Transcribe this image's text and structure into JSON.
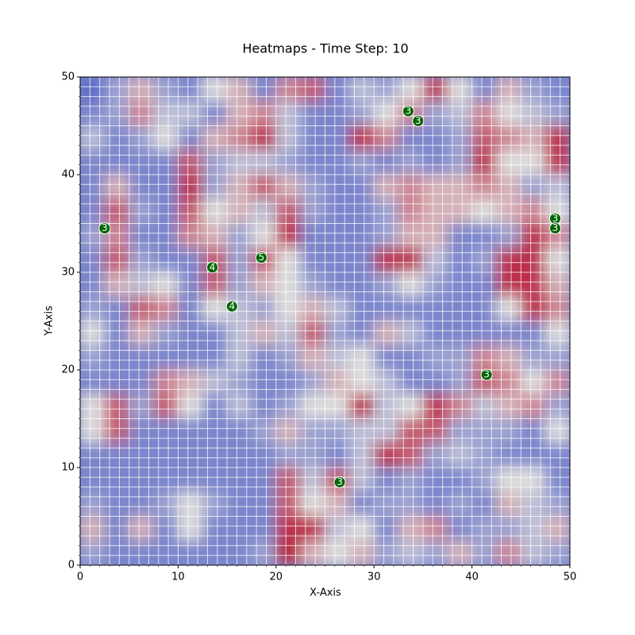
{
  "chart_data": {
    "type": "heatmap",
    "title": "Heatmaps - Time Step: 10",
    "x_label": "X-Axis",
    "y_label": "Y-Axis",
    "xlim": [
      0,
      50
    ],
    "ylim": [
      0,
      50
    ],
    "xticks": [
      0,
      10,
      20,
      30,
      40,
      50
    ],
    "yticks": [
      0,
      10,
      20,
      30,
      40,
      50
    ],
    "minor_tick_step": 1,
    "grid": true,
    "colormap": "coolwarm",
    "z": [
      [
        0.1,
        0.3,
        0.6,
        0.3,
        0.2,
        0.5,
        0.6,
        0.2,
        0.7,
        0.8,
        0.2,
        0.4,
        0.3,
        0.5,
        0.9,
        0.5,
        0.2,
        0.6,
        0.3,
        0.2
      ],
      [
        0.2,
        0.3,
        0.7,
        0.4,
        0.4,
        0.2,
        0.6,
        0.7,
        0.4,
        0.2,
        0.2,
        0.3,
        0.5,
        0.7,
        0.3,
        0.4,
        0.7,
        0.5,
        0.4,
        0.3
      ],
      [
        0.4,
        0.2,
        0.3,
        0.5,
        0.2,
        0.6,
        0.7,
        0.9,
        0.4,
        0.2,
        0.2,
        0.9,
        0.7,
        0.2,
        0.2,
        0.3,
        0.8,
        0.7,
        0.6,
        0.9
      ],
      [
        0.2,
        0.2,
        0.2,
        0.2,
        0.8,
        0.3,
        0.4,
        0.4,
        0.3,
        0.2,
        0.2,
        0.3,
        0.2,
        0.3,
        0.2,
        0.3,
        0.9,
        0.5,
        0.5,
        0.9
      ],
      [
        0.2,
        0.6,
        0.2,
        0.2,
        0.9,
        0.3,
        0.6,
        0.8,
        0.6,
        0.3,
        0.2,
        0.2,
        0.6,
        0.7,
        0.6,
        0.6,
        0.7,
        0.6,
        0.3,
        0.4
      ],
      [
        0.2,
        0.8,
        0.3,
        0.2,
        0.8,
        0.5,
        0.6,
        0.4,
        0.8,
        0.3,
        0.2,
        0.2,
        0.3,
        0.7,
        0.6,
        0.6,
        0.5,
        0.6,
        0.7,
        0.5
      ],
      [
        0.3,
        0.7,
        0.2,
        0.2,
        0.7,
        0.6,
        0.3,
        0.5,
        0.9,
        0.2,
        0.2,
        0.2,
        0.3,
        0.6,
        0.6,
        0.2,
        0.2,
        0.3,
        0.9,
        0.7
      ],
      [
        0.2,
        0.8,
        0.3,
        0.2,
        0.2,
        0.8,
        0.3,
        0.8,
        0.5,
        0.2,
        0.2,
        0.2,
        0.9,
        0.9,
        0.4,
        0.2,
        0.3,
        0.9,
        0.9,
        0.5
      ],
      [
        0.2,
        0.6,
        0.4,
        0.5,
        0.2,
        0.8,
        0.3,
        0.6,
        0.5,
        0.3,
        0.2,
        0.2,
        0.3,
        0.5,
        0.3,
        0.2,
        0.2,
        0.9,
        0.9,
        0.6
      ],
      [
        0.3,
        0.2,
        0.8,
        0.7,
        0.2,
        0.5,
        0.4,
        0.3,
        0.5,
        0.6,
        0.4,
        0.2,
        0.2,
        0.2,
        0.2,
        0.2,
        0.2,
        0.5,
        0.9,
        0.7
      ],
      [
        0.5,
        0.2,
        0.6,
        0.3,
        0.2,
        0.2,
        0.4,
        0.6,
        0.4,
        0.8,
        0.3,
        0.2,
        0.6,
        0.4,
        0.2,
        0.2,
        0.2,
        0.2,
        0.2,
        0.5
      ],
      [
        0.3,
        0.2,
        0.2,
        0.2,
        0.2,
        0.2,
        0.4,
        0.2,
        0.3,
        0.6,
        0.4,
        0.5,
        0.2,
        0.2,
        0.3,
        0.3,
        0.7,
        0.6,
        0.3,
        0.3
      ],
      [
        0.2,
        0.2,
        0.2,
        0.7,
        0.6,
        0.4,
        0.3,
        0.2,
        0.2,
        0.3,
        0.6,
        0.5,
        0.4,
        0.2,
        0.2,
        0.3,
        0.8,
        0.7,
        0.5,
        0.7
      ],
      [
        0.5,
        0.8,
        0.3,
        0.8,
        0.5,
        0.2,
        0.4,
        0.2,
        0.3,
        0.5,
        0.5,
        0.9,
        0.4,
        0.5,
        0.9,
        0.7,
        0.4,
        0.6,
        0.7,
        0.3
      ],
      [
        0.5,
        0.8,
        0.2,
        0.2,
        0.2,
        0.2,
        0.2,
        0.3,
        0.6,
        0.3,
        0.3,
        0.4,
        0.4,
        0.8,
        0.8,
        0.3,
        0.3,
        0.3,
        0.2,
        0.5
      ],
      [
        0.2,
        0.2,
        0.2,
        0.2,
        0.2,
        0.2,
        0.2,
        0.2,
        0.3,
        0.3,
        0.2,
        0.4,
        0.9,
        0.8,
        0.3,
        0.4,
        0.3,
        0.2,
        0.2,
        0.2
      ],
      [
        0.2,
        0.2,
        0.2,
        0.2,
        0.2,
        0.2,
        0.2,
        0.2,
        0.8,
        0.4,
        0.8,
        0.4,
        0.2,
        0.3,
        0.2,
        0.2,
        0.3,
        0.5,
        0.5,
        0.2
      ],
      [
        0.3,
        0.2,
        0.2,
        0.3,
        0.5,
        0.3,
        0.2,
        0.2,
        0.8,
        0.5,
        0.6,
        0.2,
        0.3,
        0.3,
        0.2,
        0.3,
        0.2,
        0.6,
        0.4,
        0.3
      ],
      [
        0.6,
        0.2,
        0.6,
        0.2,
        0.5,
        0.2,
        0.2,
        0.2,
        0.9,
        0.9,
        0.4,
        0.5,
        0.2,
        0.6,
        0.7,
        0.2,
        0.3,
        0.3,
        0.4,
        0.6
      ],
      [
        0.3,
        0.2,
        0.2,
        0.2,
        0.2,
        0.2,
        0.2,
        0.3,
        1.0,
        0.6,
        0.5,
        0.6,
        0.3,
        0.4,
        0.3,
        0.6,
        0.3,
        0.7,
        0.4,
        0.3
      ]
    ],
    "markers": {
      "color": "#006400",
      "x": [
        2.5,
        13.5,
        15.5,
        18.5,
        33.5,
        34.5,
        48.5,
        48.5,
        41.5,
        26.5
      ],
      "y": [
        34.5,
        30.5,
        26.5,
        31.5,
        46.5,
        45.5,
        35.5,
        34.5,
        19.5,
        8.5
      ],
      "values": [
        3,
        4,
        4,
        5,
        3,
        3,
        3,
        3,
        3,
        3
      ]
    }
  }
}
